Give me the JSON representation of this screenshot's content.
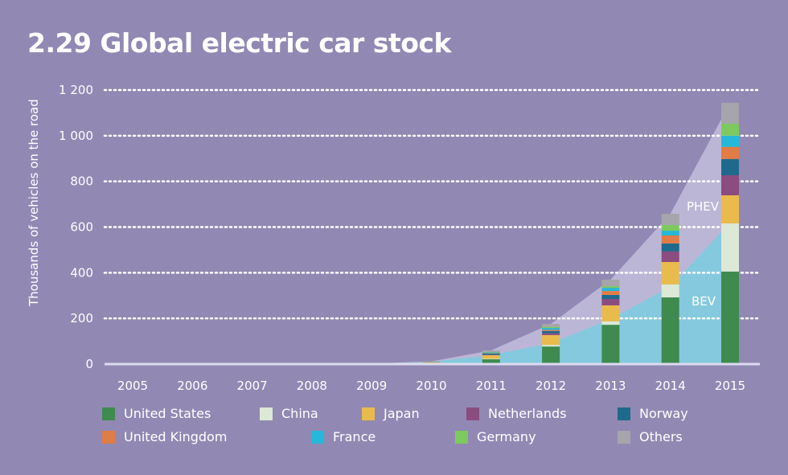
{
  "chart_data": {
    "type": "bar",
    "stacked": true,
    "title": "2.29 Global electric car stock",
    "xlabel": "",
    "ylabel": "Thousands of vehicles on the road",
    "ylim": [
      0,
      1200
    ],
    "yticks": [
      0,
      200,
      400,
      600,
      800,
      1000,
      1200
    ],
    "ytick_labels": [
      "0",
      "200",
      "400",
      "600",
      "800",
      "1 000",
      "1 200"
    ],
    "categories": [
      "2005",
      "2006",
      "2007",
      "2008",
      "2009",
      "2010",
      "2011",
      "2012",
      "2013",
      "2014",
      "2015"
    ],
    "grid": true,
    "legend_position": "bottom",
    "series": [
      {
        "name": "United States",
        "color": "#3f8a4e",
        "values": [
          0,
          0,
          0,
          0,
          0.5,
          3,
          21,
          77,
          172,
          292,
          405
        ]
      },
      {
        "name": "China",
        "color": "#dbe9d6",
        "values": [
          0,
          0,
          0,
          0,
          0.2,
          1,
          2,
          7,
          15,
          57,
          211
        ]
      },
      {
        "name": "Japan",
        "color": "#e9bb4c",
        "values": [
          0,
          0,
          0,
          0,
          1,
          4,
          16,
          43,
          70,
          98,
          123
        ]
      },
      {
        "name": "Netherlands",
        "color": "#8b4c7f",
        "values": [
          0,
          0,
          0,
          0,
          0,
          0.5,
          2,
          8,
          28,
          46,
          88
        ]
      },
      {
        "name": "Norway",
        "color": "#1f6a8c",
        "values": [
          0,
          0,
          0,
          0,
          0.2,
          0.5,
          5,
          10,
          18,
          35,
          71
        ]
      },
      {
        "name": "United Kingdom",
        "color": "#e07c45",
        "values": [
          0,
          0,
          0,
          0,
          0.2,
          0.5,
          2,
          5,
          17,
          35,
          53
        ]
      },
      {
        "name": "France",
        "color": "#26b8d8",
        "values": [
          0,
          0,
          0,
          0,
          0,
          0.5,
          3,
          8,
          14,
          21,
          49
        ]
      },
      {
        "name": "Germany",
        "color": "#7ec95e",
        "values": [
          0,
          0,
          0,
          0,
          0.1,
          0.5,
          2,
          5,
          7,
          25,
          53
        ]
      },
      {
        "name": "Others",
        "color": "#a5a5ab",
        "values": [
          0,
          0,
          0,
          0,
          0.8,
          1.5,
          7,
          13,
          29,
          49,
          91
        ]
      }
    ],
    "areas": [
      {
        "name": "PHEV",
        "label": "PHEV",
        "color": "#bcb6d6",
        "values": [
          0,
          0,
          0,
          0,
          2,
          12,
          60,
          176,
          370,
          658,
          1144
        ]
      },
      {
        "name": "BEV",
        "label": "BEV",
        "color": "#85c9de",
        "values": [
          0,
          0,
          0,
          0,
          1,
          10,
          39,
          92,
          197,
          340,
          620
        ]
      }
    ]
  }
}
